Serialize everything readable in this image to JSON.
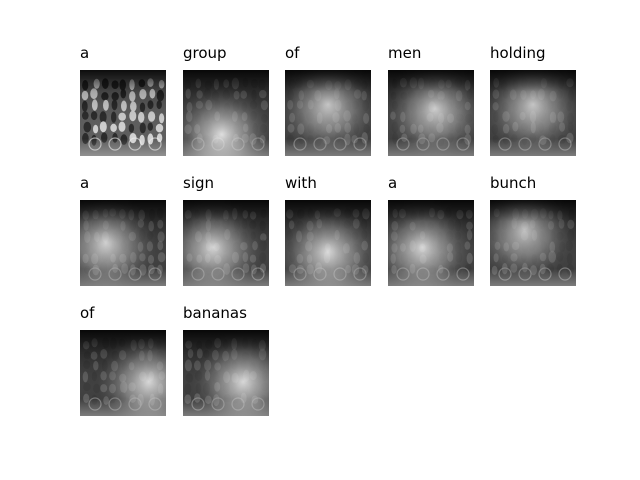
{
  "words": [
    "a",
    "group",
    "of",
    "men",
    "holding",
    "a",
    "sign",
    "with",
    "a",
    "bunch",
    "of",
    "bananas"
  ],
  "thumbnails": [
    {
      "kind": "original-photo",
      "focus": [
        0.5,
        0.5
      ]
    },
    {
      "kind": "attention-map",
      "focus": [
        0.45,
        0.75
      ]
    },
    {
      "kind": "attention-map",
      "focus": [
        0.5,
        0.4
      ]
    },
    {
      "kind": "attention-map",
      "focus": [
        0.55,
        0.45
      ]
    },
    {
      "kind": "attention-map",
      "focus": [
        0.5,
        0.4
      ]
    },
    {
      "kind": "attention-map",
      "focus": [
        0.3,
        0.5
      ]
    },
    {
      "kind": "attention-map",
      "focus": [
        0.35,
        0.55
      ]
    },
    {
      "kind": "attention-map",
      "focus": [
        0.5,
        0.6
      ]
    },
    {
      "kind": "attention-map",
      "focus": [
        0.4,
        0.55
      ]
    },
    {
      "kind": "attention-map",
      "focus": [
        0.4,
        0.35
      ]
    },
    {
      "kind": "attention-map",
      "focus": [
        0.8,
        0.6
      ]
    },
    {
      "kind": "attention-map",
      "focus": [
        0.7,
        0.6
      ]
    }
  ],
  "colors": {
    "text": "#000000",
    "background": "#ffffff",
    "map_dark": "#111111",
    "map_light": "#e8e8e8"
  }
}
